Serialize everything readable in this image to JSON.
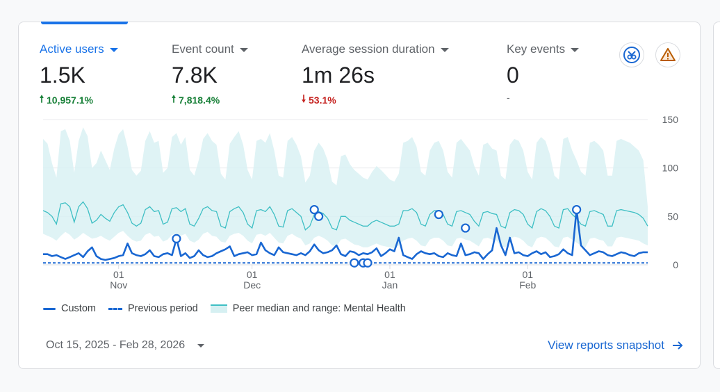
{
  "metrics": [
    {
      "label": "Active users",
      "value": "1.5K",
      "change": "10,957.1%",
      "direction": "up"
    },
    {
      "label": "Event count",
      "value": "7.8K",
      "change": "7,818.4%",
      "direction": "up"
    },
    {
      "label": "Average session duration",
      "value": "1m 26s",
      "change": "53.1%",
      "direction": "down"
    },
    {
      "label": "Key events",
      "value": "0",
      "change": "-",
      "direction": "none"
    }
  ],
  "icons": {
    "insight": "insights-badge-icon",
    "warning": "warning-icon"
  },
  "colors": {
    "accent": "#1a73e8",
    "up": "#188038",
    "down": "#c5221f",
    "peer_band": "#d6f0f2",
    "peer_line": "#3ebfc4",
    "series": "#1967d2"
  },
  "chart_data": {
    "type": "line",
    "y_ticks": [
      "150",
      "100",
      "50",
      "0"
    ],
    "ylim": [
      0,
      150
    ],
    "x_tick_labels": [
      {
        "day": "01",
        "month": "Nov"
      },
      {
        "day": "01",
        "month": "Dec"
      },
      {
        "day": "01",
        "month": "Jan"
      },
      {
        "day": "01",
        "month": "Feb"
      }
    ],
    "x_tick_days": [
      17,
      47,
      78,
      109
    ],
    "days": 137,
    "series": [
      {
        "name": "Custom",
        "values": [
          11,
          11,
          9,
          10,
          8,
          6,
          8,
          10,
          12,
          8,
          14,
          18,
          9,
          6,
          5,
          6,
          7,
          9,
          10,
          22,
          12,
          10,
          9,
          11,
          15,
          9,
          8,
          11,
          12,
          10,
          27,
          9,
          12,
          7,
          9,
          15,
          10,
          8,
          9,
          12,
          14,
          16,
          19,
          9,
          11,
          12,
          13,
          10,
          11,
          23,
          15,
          12,
          10,
          18,
          13,
          12,
          11,
          10,
          12,
          10,
          14,
          21,
          15,
          12,
          13,
          15,
          20,
          11,
          9,
          14,
          13,
          10,
          12,
          11,
          13,
          17,
          9,
          12,
          16,
          14,
          28,
          10,
          8,
          6,
          11,
          14,
          12,
          11,
          12,
          9,
          8,
          12,
          10,
          9,
          22,
          10,
          11,
          13,
          12,
          6,
          11,
          15,
          38,
          20,
          10,
          28,
          12,
          13,
          10,
          9,
          12,
          14,
          11,
          13,
          8,
          9,
          11,
          16,
          12,
          10,
          57,
          20,
          15,
          10,
          12,
          14,
          13,
          10,
          9,
          11,
          13,
          12,
          10,
          9,
          12,
          13,
          13
        ]
      },
      {
        "name": "Previous period",
        "values": [
          2,
          2,
          2,
          2,
          2,
          2,
          2,
          2,
          2,
          2,
          2,
          2,
          2,
          2,
          2,
          2,
          2,
          2,
          2,
          2,
          2,
          2,
          2,
          2,
          2,
          2,
          2,
          2,
          2,
          2,
          2,
          2,
          2,
          2,
          2,
          2,
          2,
          2,
          2,
          2,
          2,
          2,
          2,
          2,
          2,
          2,
          2,
          2,
          2,
          2,
          2,
          2,
          2,
          2,
          2,
          2,
          2,
          2,
          2,
          2,
          2,
          2,
          2,
          2,
          2,
          2,
          2,
          2,
          2,
          2,
          2,
          2,
          2,
          2,
          2,
          2,
          2,
          2,
          2,
          2,
          2,
          2,
          2,
          2,
          2,
          2,
          2,
          2,
          2,
          2,
          2,
          2,
          2,
          2,
          2,
          2,
          2,
          2,
          2,
          2,
          2,
          2,
          2,
          2,
          2,
          2,
          2,
          2,
          2,
          2,
          2,
          2,
          2,
          2,
          2,
          2,
          2,
          2,
          2,
          2,
          2,
          2,
          2,
          2,
          2,
          2,
          2,
          2,
          2,
          2,
          2,
          2,
          2,
          2,
          2,
          2,
          2
        ]
      },
      {
        "name": "Peer median and range: Mental Health",
        "median": [
          56,
          54,
          50,
          42,
          63,
          64,
          60,
          44,
          60,
          65,
          58,
          43,
          46,
          52,
          48,
          45,
          54,
          60,
          62,
          54,
          43,
          40,
          43,
          57,
          60,
          55,
          56,
          42,
          44,
          58,
          59,
          55,
          58,
          42,
          40,
          48,
          58,
          60,
          56,
          55,
          40,
          38,
          55,
          58,
          60,
          54,
          42,
          38,
          56,
          57,
          55,
          60,
          52,
          40,
          39,
          56,
          58,
          54,
          50,
          36,
          40,
          52,
          55,
          53,
          48,
          38,
          36,
          50,
          50,
          46,
          44,
          42,
          40,
          40,
          44,
          46,
          44,
          42,
          40,
          40,
          42,
          56,
          56,
          58,
          54,
          42,
          40,
          52,
          56,
          56,
          52,
          42,
          40,
          55,
          56,
          54,
          52,
          45,
          40,
          54,
          55,
          53,
          52,
          40,
          38,
          54,
          57,
          56,
          52,
          42,
          38,
          55,
          58,
          56,
          50,
          40,
          38,
          57,
          58,
          52,
          48,
          42,
          40,
          55,
          56,
          54,
          52,
          40,
          40,
          56,
          57,
          56,
          55,
          54,
          52,
          48,
          40
        ],
        "low": [
          32,
          30,
          28,
          25,
          30,
          34,
          31,
          26,
          29,
          33,
          30,
          27,
          28,
          30,
          27,
          25,
          29,
          33,
          35,
          30,
          26,
          24,
          25,
          31,
          33,
          29,
          30,
          24,
          26,
          31,
          32,
          30,
          32,
          25,
          23,
          26,
          32,
          34,
          30,
          29,
          24,
          23,
          30,
          32,
          33,
          30,
          25,
          22,
          31,
          32,
          30,
          33,
          28,
          23,
          22,
          30,
          32,
          29,
          27,
          20,
          22,
          28,
          30,
          28,
          25,
          20,
          19,
          26,
          27,
          24,
          21,
          20,
          18,
          18,
          20,
          22,
          20,
          19,
          18,
          17,
          20,
          25,
          27,
          28,
          25,
          20,
          19,
          26,
          28,
          28,
          25,
          20,
          19,
          27,
          28,
          26,
          25,
          22,
          19,
          27,
          28,
          26,
          25,
          19,
          18,
          27,
          29,
          28,
          25,
          20,
          18,
          27,
          29,
          28,
          24,
          19,
          18,
          28,
          29,
          26,
          23,
          20,
          18,
          27,
          28,
          26,
          25,
          19,
          19,
          28,
          29,
          28,
          27,
          26,
          25,
          22,
          20
        ],
        "high": [
          130,
          125,
          105,
          90,
          138,
          140,
          128,
          95,
          128,
          142,
          133,
          100,
          105,
          118,
          108,
          98,
          120,
          135,
          140,
          122,
          98,
          92,
          97,
          128,
          138,
          126,
          128,
          95,
          100,
          132,
          136,
          124,
          132,
          98,
          92,
          108,
          130,
          136,
          128,
          124,
          94,
          88,
          125,
          132,
          138,
          124,
          98,
          88,
          128,
          130,
          126,
          136,
          118,
          92,
          90,
          128,
          132,
          124,
          112,
          85,
          92,
          118,
          126,
          120,
          108,
          86,
          82,
          112,
          114,
          104,
          98,
          94,
          90,
          88,
          96,
          102,
          98,
          93,
          88,
          86,
          94,
          126,
          128,
          132,
          122,
          96,
          92,
          118,
          126,
          128,
          118,
          96,
          90,
          126,
          130,
          124,
          118,
          102,
          92,
          124,
          126,
          120,
          118,
          92,
          88,
          124,
          130,
          128,
          118,
          96,
          88,
          126,
          132,
          128,
          114,
          92,
          88,
          130,
          132,
          118,
          108,
          96,
          92,
          126,
          128,
          124,
          118,
          92,
          92,
          128,
          130,
          128,
          126,
          122,
          118,
          108,
          60
        ]
      }
    ],
    "markers": [
      {
        "day": 30,
        "value": 27
      },
      {
        "day": 61,
        "value": 57
      },
      {
        "day": 62,
        "value": 50
      },
      {
        "day": 70,
        "value": 2
      },
      {
        "day": 72,
        "value": 2
      },
      {
        "day": 73,
        "value": 2
      },
      {
        "day": 89,
        "value": 52
      },
      {
        "day": 95,
        "value": 38
      },
      {
        "day": 120,
        "value": 57
      }
    ]
  },
  "legend": [
    {
      "label": "Custom",
      "style": "solid"
    },
    {
      "label": "Previous period",
      "style": "dashed"
    },
    {
      "label": "Peer median and range: Mental Health",
      "style": "band"
    }
  ],
  "footer": {
    "date_range": "Oct 15, 2025 - Feb 28, 2026",
    "view_link": "View reports snapshot"
  }
}
